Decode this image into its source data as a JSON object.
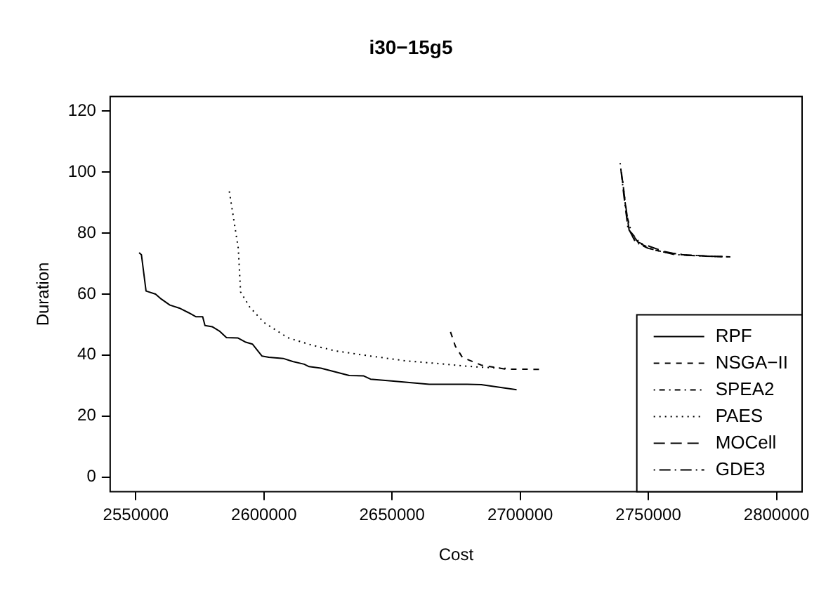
{
  "chart_data": {
    "type": "line",
    "title": "i30−15g5",
    "xlabel": "Cost",
    "ylabel": "Duration",
    "xlim": [
      2540000,
      2810000
    ],
    "xticks": [
      2550000,
      2600000,
      2650000,
      2700000,
      2750000,
      2800000
    ],
    "ylim": [
      -4.8,
      124.8
    ],
    "yticks": [
      0,
      20,
      40,
      60,
      80,
      100,
      120
    ],
    "grid": false,
    "legend": "bottom right",
    "marker": "none",
    "series": [
      {
        "name": "RPF",
        "color": "#000000",
        "line_style": "solid",
        "x": [
          2551300,
          2552200,
          2554000,
          2557700,
          2559600,
          2563300,
          2567000,
          2570600,
          2573400,
          2576100,
          2577000,
          2579800,
          2582600,
          2585400,
          2589900,
          2592700,
          2595500,
          2599200,
          2601900,
          2607500,
          2611200,
          2615700,
          2617600,
          2622200,
          2625900,
          2633300,
          2638800,
          2641600,
          2649800,
          2664500,
          2679300,
          2684800,
          2698600
        ],
        "values": [
          73.6,
          72.9,
          61.0,
          60.0,
          58.6,
          56.4,
          55.4,
          53.9,
          52.6,
          52.6,
          49.7,
          49.3,
          47.9,
          45.7,
          45.6,
          44.3,
          43.6,
          39.7,
          39.3,
          38.9,
          37.9,
          37.0,
          36.2,
          35.7,
          34.9,
          33.3,
          33.2,
          32.1,
          31.5,
          30.4,
          30.4,
          30.3,
          28.6
        ]
      },
      {
        "name": "NSGA−II",
        "color": "#000000",
        "line_style": "dashed",
        "x": [
          2672800,
          2674700,
          2677400,
          2679300,
          2684800,
          2694000,
          2707800
        ],
        "values": [
          47.6,
          42.9,
          39.3,
          38.6,
          36.7,
          35.4,
          35.3
        ]
      },
      {
        "name": "SPEA2",
        "color": "#000000",
        "line_style": "dashdot",
        "x": [
          2740000,
          2741500,
          2743500,
          2747000,
          2752000,
          2758000,
          2765000,
          2775000,
          2781000
        ],
        "values": [
          97,
          86,
          80,
          76.5,
          74.5,
          73.5,
          72.8,
          72.4,
          72.2
        ]
      },
      {
        "name": "PAES",
        "color": "#000000",
        "line_style": "dotted",
        "x": [
          2586500,
          2590000,
          2590900,
          2594500,
          2600000,
          2609300,
          2618500,
          2627700,
          2638800,
          2655300,
          2668200,
          2678300,
          2684800,
          2695900
        ],
        "values": [
          93.7,
          75.0,
          60.7,
          55.7,
          50.7,
          45.7,
          43.3,
          41.4,
          40.0,
          38.1,
          37.2,
          36.4,
          36.0,
          35.6
        ]
      },
      {
        "name": "MOCell",
        "color": "#000000",
        "line_style": "longdash",
        "x": [
          2739500,
          2741000,
          2742500,
          2746000,
          2751000,
          2756000,
          2762000,
          2772000,
          2779000
        ],
        "values": [
          100,
          90,
          81,
          77,
          75.5,
          74,
          73,
          72.5,
          72.3
        ]
      },
      {
        "name": "GDE3",
        "color": "#000000",
        "line_style": "longdashdot",
        "x": [
          2739000,
          2740500,
          2742000,
          2745000,
          2750000,
          2755000,
          2760000,
          2770000,
          2782000
        ],
        "values": [
          103,
          92,
          82,
          77,
          75,
          74,
          73,
          72.5,
          72.2
        ]
      }
    ]
  }
}
